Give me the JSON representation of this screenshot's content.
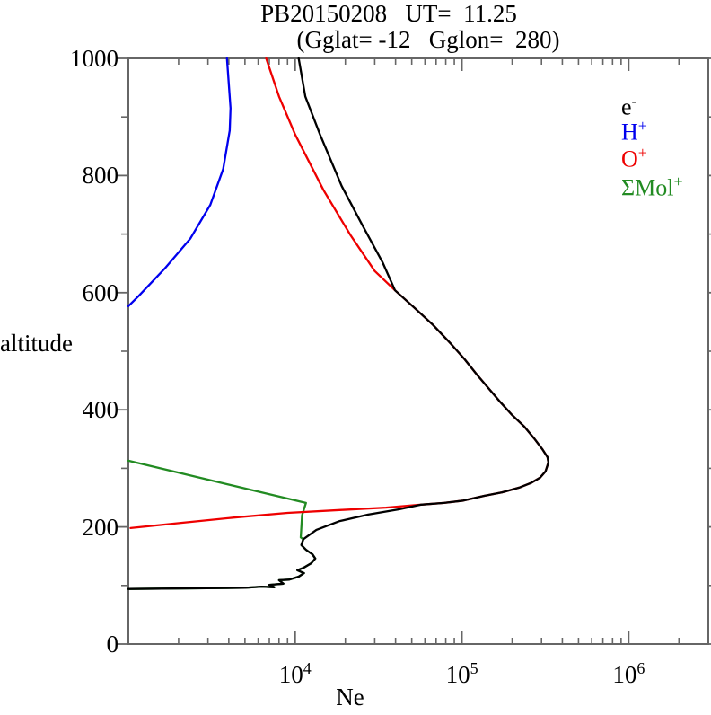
{
  "title": {
    "line1": "PB20150208   UT=  11.25",
    "line2": "(Gglat= -12   Gglon=  280)"
  },
  "axes": {
    "x_label": "Ne",
    "y_label": "altitude",
    "x_scale": "log",
    "x_min": 1000,
    "x_max": 3000000,
    "y_min": 0,
    "y_max": 1000,
    "x_major_ticks": [
      10000,
      100000,
      1000000
    ],
    "x_major_labels": [
      {
        "base": "10",
        "exp": "4"
      },
      {
        "base": "10",
        "exp": "5"
      },
      {
        "base": "10",
        "exp": "6"
      }
    ],
    "x_minor_ticks": [
      2000,
      3000,
      4000,
      5000,
      6000,
      7000,
      8000,
      9000,
      20000,
      30000,
      40000,
      50000,
      60000,
      70000,
      80000,
      90000,
      200000,
      300000,
      400000,
      500000,
      600000,
      700000,
      800000,
      900000,
      2000000
    ],
    "y_major_ticks": [
      0,
      200,
      400,
      600,
      800,
      1000
    ],
    "y_minor_ticks": [
      100,
      300,
      500,
      700,
      900
    ]
  },
  "legend": {
    "items": [
      {
        "main": "e",
        "sup": "-",
        "color": "#000000"
      },
      {
        "main": "H",
        "sup": "+",
        "color": "#0000ee"
      },
      {
        "main": "O",
        "sup": "+",
        "color": "#ee0000"
      },
      {
        "main": "ΣMol",
        "sup": "+",
        "color": "#228b22"
      }
    ]
  },
  "colors": {
    "frame": "#666666",
    "e_minus": "#000000",
    "h_plus": "#0000ee",
    "o_plus": "#ee0000",
    "mol_plus": "#228b22"
  },
  "chart_data": {
    "type": "line",
    "title": "PB20150208 UT= 11.25 (Gglat= -12 Gglon= 280)",
    "xlabel": "Ne",
    "ylabel": "altitude",
    "x_scale": "log",
    "xlim": [
      1000,
      3000000
    ],
    "ylim": [
      0,
      1000
    ],
    "grid": false,
    "legend_position": "upper right",
    "series": [
      {
        "name": "SigmaMol+",
        "color_key": "mol_plus",
        "points": [
          [
            1000,
            313
          ],
          [
            11600,
            241
          ],
          [
            11000,
            220
          ],
          [
            10800,
            182
          ],
          [
            11200,
            179
          ],
          [
            10900,
            169
          ],
          [
            11600,
            161
          ],
          [
            12700,
            153
          ],
          [
            13200,
            146
          ],
          [
            12500,
            138
          ],
          [
            11200,
            130
          ],
          [
            10300,
            126
          ],
          [
            11300,
            121
          ],
          [
            10500,
            115
          ],
          [
            9200,
            110
          ],
          [
            8000,
            109
          ],
          [
            8500,
            103
          ],
          [
            7000,
            101
          ],
          [
            7500,
            97
          ],
          [
            6300,
            98
          ],
          [
            5000,
            96
          ],
          [
            1000,
            94
          ]
        ]
      },
      {
        "name": "H+",
        "color_key": "h_plus",
        "points": [
          [
            3900,
            1000
          ],
          [
            4100,
            915
          ],
          [
            4050,
            877
          ],
          [
            3700,
            811
          ],
          [
            3100,
            750
          ],
          [
            2350,
            692
          ],
          [
            1650,
            641
          ],
          [
            1150,
            594
          ],
          [
            1000,
            577
          ]
        ]
      },
      {
        "name": "O+",
        "color_key": "o_plus",
        "points": [
          [
            6700,
            1000
          ],
          [
            8000,
            935
          ],
          [
            10000,
            870
          ],
          [
            14800,
            775
          ],
          [
            21500,
            698
          ],
          [
            30000,
            637
          ],
          [
            39700,
            604
          ],
          [
            52000,
            574
          ],
          [
            67000,
            545
          ],
          [
            85000,
            514
          ],
          [
            104000,
            486
          ],
          [
            123000,
            460
          ],
          [
            145000,
            436
          ],
          [
            170000,
            413
          ],
          [
            200000,
            391
          ],
          [
            237000,
            371
          ],
          [
            271000,
            351
          ],
          [
            303000,
            333
          ],
          [
            326000,
            319
          ],
          [
            330000,
            310
          ],
          [
            317000,
            295
          ],
          [
            294000,
            284
          ],
          [
            259000,
            275
          ],
          [
            220000,
            267
          ],
          [
            174000,
            259
          ],
          [
            136000,
            253
          ],
          [
            102000,
            245
          ],
          [
            78000,
            241
          ],
          [
            57000,
            238
          ],
          [
            35000,
            233
          ],
          [
            19000,
            229
          ],
          [
            9000,
            224
          ],
          [
            4300,
            216
          ],
          [
            2100,
            207
          ],
          [
            1030,
            198
          ]
        ]
      },
      {
        "name": "e-",
        "color_key": "e_minus",
        "points": [
          [
            10500,
            1000
          ],
          [
            11500,
            935
          ],
          [
            14100,
            870
          ],
          [
            19000,
            782
          ],
          [
            25200,
            716
          ],
          [
            33400,
            652
          ],
          [
            39700,
            604
          ],
          [
            52000,
            574
          ],
          [
            67000,
            545
          ],
          [
            85000,
            514
          ],
          [
            104000,
            486
          ],
          [
            123000,
            460
          ],
          [
            145000,
            436
          ],
          [
            170000,
            413
          ],
          [
            200000,
            391
          ],
          [
            237000,
            371
          ],
          [
            271000,
            351
          ],
          [
            303000,
            333
          ],
          [
            326000,
            319
          ],
          [
            330000,
            310
          ],
          [
            317000,
            295
          ],
          [
            294000,
            284
          ],
          [
            259000,
            275
          ],
          [
            220000,
            267
          ],
          [
            174000,
            259
          ],
          [
            136000,
            253
          ],
          [
            102000,
            245
          ],
          [
            78000,
            241
          ],
          [
            57000,
            238
          ],
          [
            42000,
            230
          ],
          [
            27400,
            221
          ],
          [
            18500,
            210
          ],
          [
            13400,
            195
          ],
          [
            11200,
            179
          ],
          [
            10900,
            169
          ],
          [
            11600,
            161
          ],
          [
            12700,
            153
          ],
          [
            13200,
            146
          ],
          [
            12500,
            138
          ],
          [
            11200,
            130
          ],
          [
            10300,
            126
          ],
          [
            11300,
            121
          ],
          [
            10500,
            115
          ],
          [
            9200,
            110
          ],
          [
            8000,
            109
          ],
          [
            8500,
            103
          ],
          [
            7000,
            101
          ],
          [
            7500,
            97
          ],
          [
            6300,
            98
          ],
          [
            5000,
            96
          ],
          [
            1000,
            94
          ]
        ]
      }
    ]
  }
}
